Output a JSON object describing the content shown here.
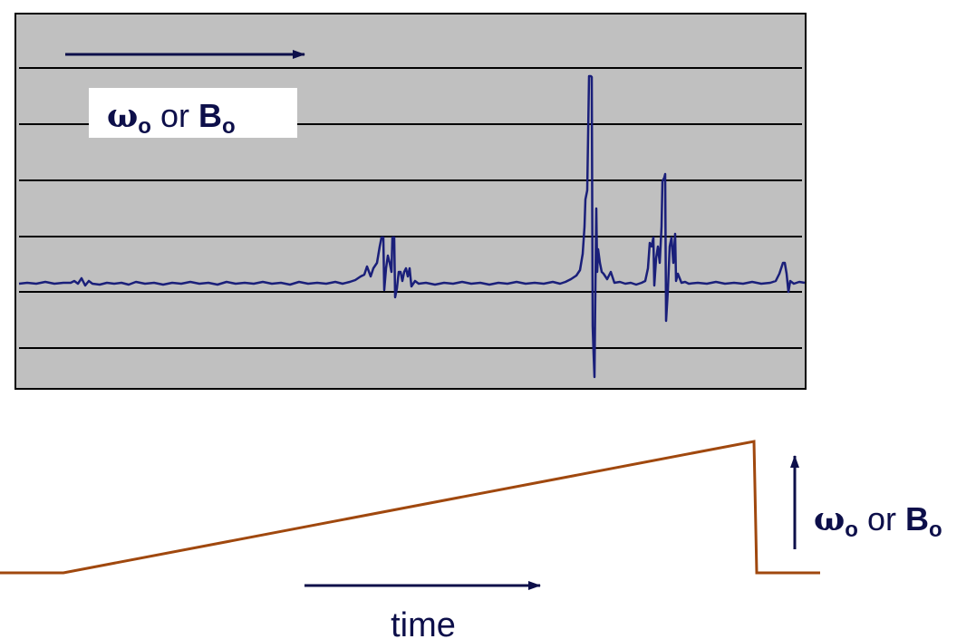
{
  "spectrum_panel": {
    "label": {
      "omega": "ω",
      "sub": "o",
      "or": "or",
      "b": "B",
      "b_sub": "o"
    },
    "colors": {
      "background": "#c0c0c0",
      "gridline": "#000000",
      "trace": "#1a1f7a",
      "border": "#000000"
    }
  },
  "sweep_panel": {
    "label": {
      "omega": "ω",
      "sub": "o",
      "or": "or",
      "b": "B",
      "b_sub": "o"
    },
    "time_label": "time",
    "colors": {
      "ramp": "#a0480e",
      "arrow": "#0d0f4a"
    }
  }
}
